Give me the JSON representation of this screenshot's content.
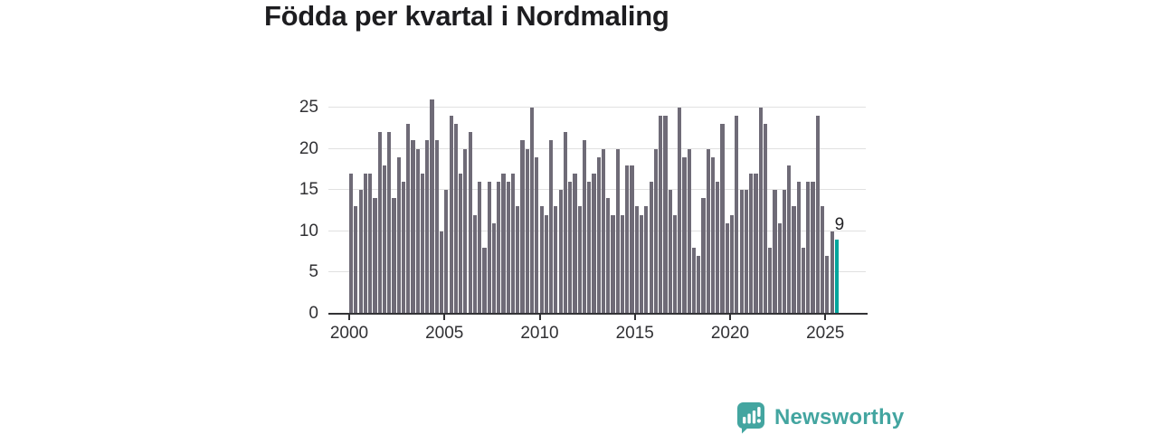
{
  "header": {
    "title": "Födda per kvartal i Nordmaling"
  },
  "chart_data": {
    "type": "bar",
    "title": "Födda per kvartal i Nordmaling",
    "x_unit": "quarter",
    "xlabel": "",
    "ylabel": "",
    "ylim": [
      0,
      26
    ],
    "y_ticks": [
      0,
      5,
      10,
      15,
      20,
      25
    ],
    "x_tick_years": [
      2000,
      2005,
      2010,
      2015,
      2020,
      2025
    ],
    "grid": "horizontal",
    "bar_color": "#6f6b77",
    "highlight": {
      "position": "last",
      "value": 9,
      "label": "9",
      "color": "#00a59c"
    },
    "years": [
      {
        "year": 2000,
        "values": [
          17,
          13,
          15,
          17
        ]
      },
      {
        "year": 2001,
        "values": [
          17,
          14,
          22,
          18
        ]
      },
      {
        "year": 2002,
        "values": [
          22,
          14,
          19,
          16
        ]
      },
      {
        "year": 2003,
        "values": [
          23,
          21,
          20,
          17
        ]
      },
      {
        "year": 2004,
        "values": [
          21,
          26,
          21,
          10
        ]
      },
      {
        "year": 2005,
        "values": [
          15,
          24,
          23,
          17
        ]
      },
      {
        "year": 2006,
        "values": [
          20,
          22,
          12,
          16
        ]
      },
      {
        "year": 2007,
        "values": [
          8,
          16,
          11,
          16
        ]
      },
      {
        "year": 2008,
        "values": [
          17,
          16,
          17,
          13
        ]
      },
      {
        "year": 2009,
        "values": [
          21,
          20,
          25,
          19
        ]
      },
      {
        "year": 2010,
        "values": [
          13,
          12,
          21,
          13
        ]
      },
      {
        "year": 2011,
        "values": [
          15,
          22,
          16,
          17
        ]
      },
      {
        "year": 2012,
        "values": [
          13,
          21,
          16,
          17
        ]
      },
      {
        "year": 2013,
        "values": [
          19,
          20,
          14,
          12
        ]
      },
      {
        "year": 2014,
        "values": [
          20,
          12,
          18,
          18
        ]
      },
      {
        "year": 2015,
        "values": [
          13,
          12,
          13,
          16
        ]
      },
      {
        "year": 2016,
        "values": [
          20,
          24,
          24,
          15
        ]
      },
      {
        "year": 2017,
        "values": [
          12,
          25,
          19,
          20
        ]
      },
      {
        "year": 2018,
        "values": [
          8,
          7,
          14,
          20
        ]
      },
      {
        "year": 2019,
        "values": [
          19,
          16,
          23,
          11
        ]
      },
      {
        "year": 2020,
        "values": [
          12,
          24,
          15,
          15
        ]
      },
      {
        "year": 2021,
        "values": [
          17,
          17,
          25,
          23
        ]
      },
      {
        "year": 2022,
        "values": [
          8,
          15,
          11,
          15
        ]
      },
      {
        "year": 2023,
        "values": [
          18,
          13,
          16,
          8
        ]
      },
      {
        "year": 2024,
        "values": [
          16,
          16,
          24,
          13
        ]
      },
      {
        "year": 2025,
        "values": [
          7,
          10,
          9
        ]
      }
    ]
  },
  "branding": {
    "name": "Newsworthy",
    "icon": "newsworthy-logo-icon",
    "color": "#43a5a0"
  }
}
